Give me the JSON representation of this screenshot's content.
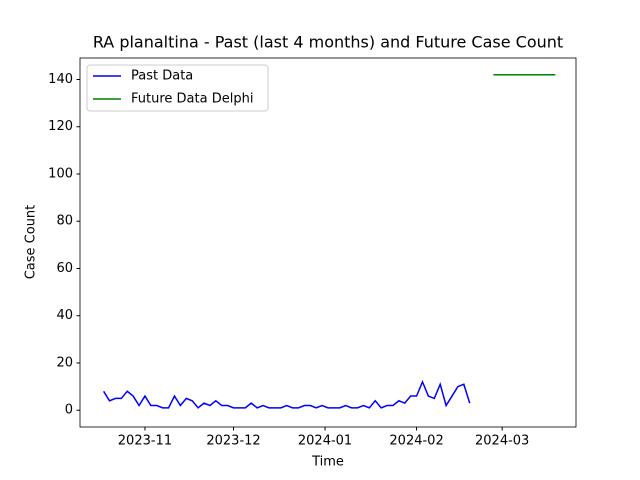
{
  "chart_data": {
    "type": "line",
    "title": "RA planaltina - Past (last 4 months) and Future Case Count",
    "x_label": "Time",
    "y_label": "Case Count",
    "series": [
      {
        "name": "Past Data",
        "color": "#0000ff",
        "x": [
          "2023-10-18",
          "2023-10-20",
          "2023-10-22",
          "2023-10-24",
          "2023-10-26",
          "2023-10-28",
          "2023-10-30",
          "2023-11-01",
          "2023-11-03",
          "2023-11-05",
          "2023-11-07",
          "2023-11-09",
          "2023-11-11",
          "2023-11-13",
          "2023-11-15",
          "2023-11-17",
          "2023-11-19",
          "2023-11-21",
          "2023-11-23",
          "2023-11-25",
          "2023-11-27",
          "2023-11-29",
          "2023-12-01",
          "2023-12-03",
          "2023-12-05",
          "2023-12-07",
          "2023-12-09",
          "2023-12-11",
          "2023-12-13",
          "2023-12-15",
          "2023-12-17",
          "2023-12-19",
          "2023-12-21",
          "2023-12-23",
          "2023-12-25",
          "2023-12-27",
          "2023-12-29",
          "2023-12-31",
          "2024-01-02",
          "2024-01-04",
          "2024-01-06",
          "2024-01-08",
          "2024-01-10",
          "2024-01-12",
          "2024-01-14",
          "2024-01-16",
          "2024-01-18",
          "2024-01-20",
          "2024-01-22",
          "2024-01-24",
          "2024-01-26",
          "2024-01-28",
          "2024-01-30",
          "2024-02-01",
          "2024-02-03",
          "2024-02-05",
          "2024-02-07",
          "2024-02-09",
          "2024-02-11",
          "2024-02-13",
          "2024-02-15",
          "2024-02-17",
          "2024-02-19"
        ],
        "values": [
          8,
          4,
          5,
          5,
          8,
          6,
          2,
          6,
          2,
          2,
          1,
          1,
          6,
          2,
          5,
          4,
          1,
          3,
          2,
          4,
          2,
          2,
          1,
          1,
          1,
          3,
          1,
          2,
          1,
          1,
          1,
          2,
          1,
          1,
          2,
          2,
          1,
          2,
          1,
          1,
          1,
          2,
          1,
          1,
          2,
          1,
          4,
          1,
          2,
          2,
          4,
          3,
          6,
          6,
          12,
          6,
          5,
          11,
          2,
          6,
          10,
          11,
          3
        ]
      },
      {
        "name": "Future Data Delphi",
        "color": "#008000",
        "x": [
          "2024-02-27",
          "2024-03-19"
        ],
        "values": [
          142,
          142
        ]
      }
    ],
    "xlim": [
      "2023-10-10",
      "2024-03-26"
    ],
    "xticks": [
      {
        "value": "2023-11-01",
        "label": "2023-11"
      },
      {
        "value": "2023-12-01",
        "label": "2023-12"
      },
      {
        "value": "2024-01-01",
        "label": "2024-01"
      },
      {
        "value": "2024-02-01",
        "label": "2024-02"
      },
      {
        "value": "2024-03-01",
        "label": "2024-03"
      }
    ],
    "ylim": [
      -7.1,
      149.1
    ],
    "yticks": [
      0,
      20,
      40,
      60,
      80,
      100,
      120,
      140
    ],
    "legend": "upper left"
  }
}
